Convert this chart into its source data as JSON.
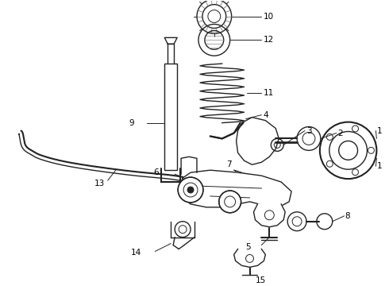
{
  "background_color": "#ffffff",
  "line_color": "#222222",
  "label_color": "#000000",
  "figsize": [
    4.9,
    3.6
  ],
  "dpi": 100,
  "xlim": [
    0,
    490
  ],
  "ylim": [
    0,
    360
  ]
}
